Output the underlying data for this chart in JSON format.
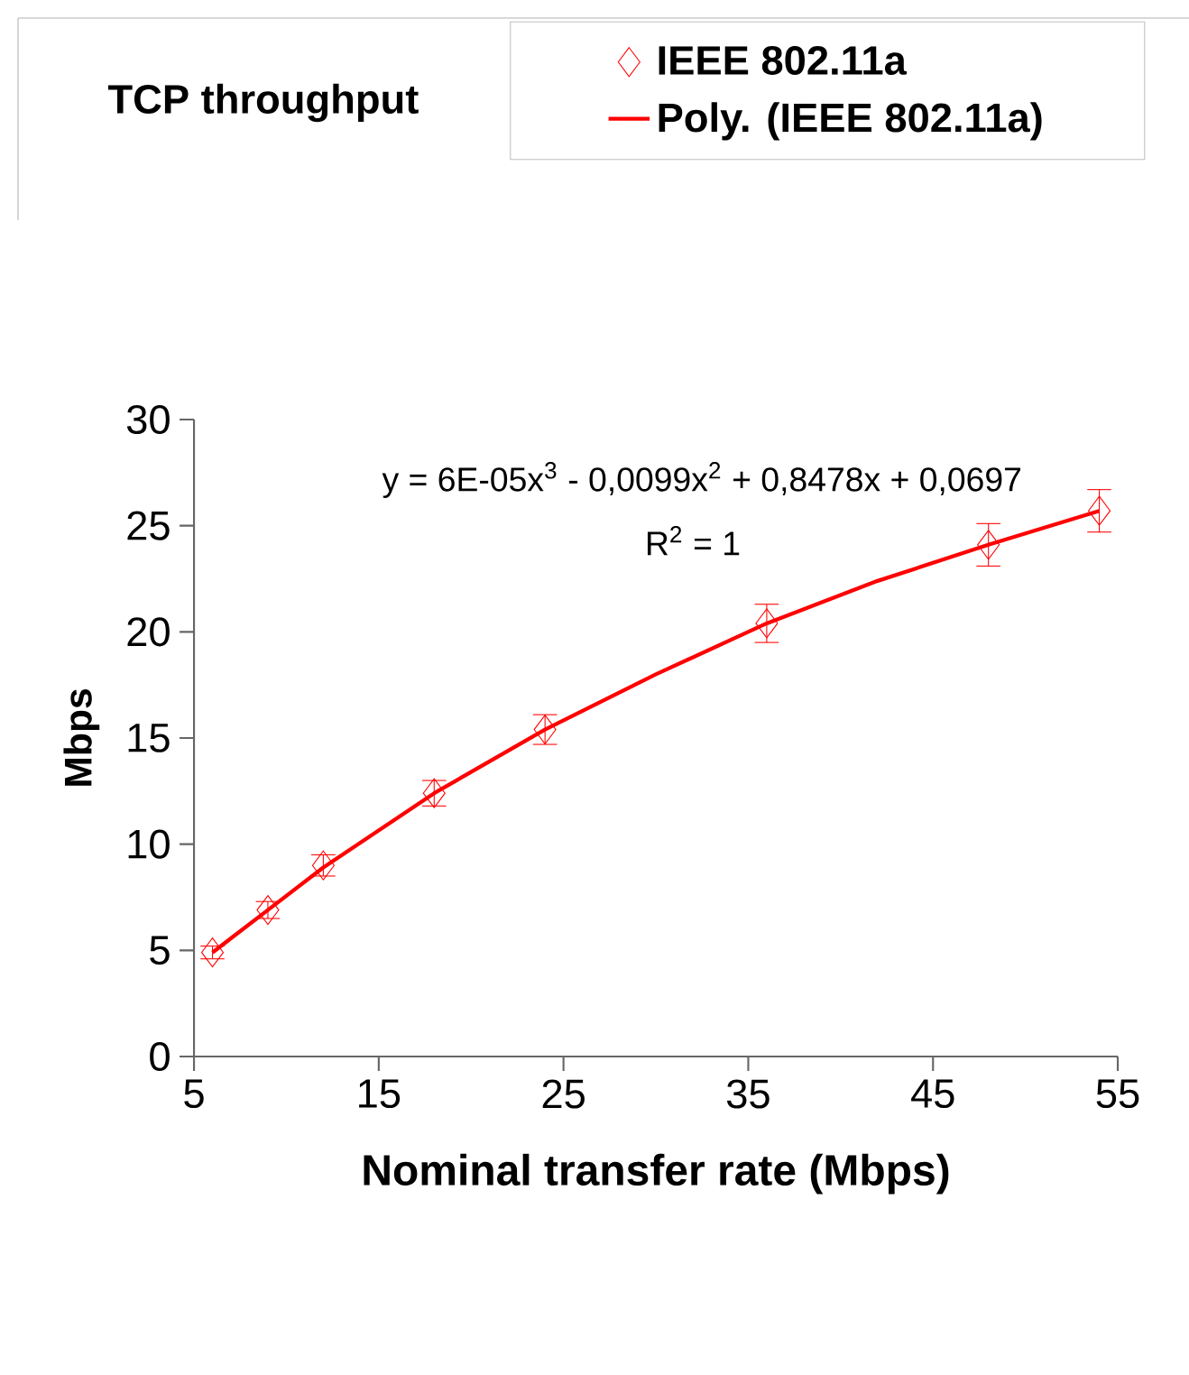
{
  "chart_data": {
    "type": "scatter",
    "title": "TCP throughput",
    "xlabel": "Nominal transfer rate (Mbps)",
    "ylabel": "Mbps",
    "xlim": [
      5,
      55
    ],
    "xticks": [
      5,
      15,
      25,
      35,
      45,
      55
    ],
    "ylim": [
      0,
      30
    ],
    "yticks": [
      0,
      5,
      10,
      15,
      20,
      25,
      30
    ],
    "grid": false,
    "legend": "top right",
    "annotations": [
      "y = 6E-05x$^{3}$ - 0,0099x$^{2}$ + 0,8478x + 0,0697",
      "R$^{2}$ = 1"
    ],
    "series": [
      {
        "name": "IEEE 802.11a",
        "marker": "diamond",
        "color": "#ff0000",
        "x": [
          6,
          9,
          12,
          18,
          24,
          36,
          48,
          54
        ],
        "values": [
          4.9,
          6.9,
          9.0,
          12.4,
          15.4,
          20.4,
          24.1,
          25.7
        ],
        "errors": [
          0.3,
          0.4,
          0.5,
          0.6,
          0.7,
          0.9,
          1.0,
          1.0
        ]
      },
      {
        "name": "Poly. (IEEE 802.11a)",
        "type": "line",
        "color": "#ff0000",
        "line_style": "solid",
        "marker": "none",
        "x": [
          6,
          9,
          12,
          18,
          24,
          30,
          36,
          42,
          48,
          54
        ],
        "values": [
          4.9,
          6.9,
          8.9,
          12.4,
          15.4,
          18.0,
          20.4,
          22.4,
          24.1,
          25.7
        ]
      }
    ]
  }
}
